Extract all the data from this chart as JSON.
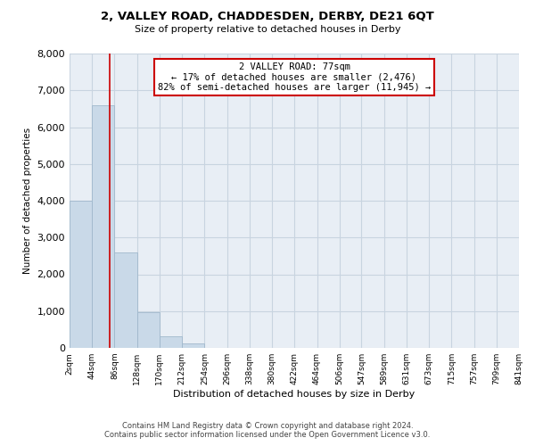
{
  "title": "2, VALLEY ROAD, CHADDESDEN, DERBY, DE21 6QT",
  "subtitle": "Size of property relative to detached houses in Derby",
  "xlabel": "Distribution of detached houses by size in Derby",
  "ylabel": "Number of detached properties",
  "bar_color": "#c9d9e8",
  "bar_edge_color": "#a0b8cc",
  "background_color": "#ffffff",
  "plot_bg_color": "#e8eef5",
  "grid_color": "#c8d4e0",
  "vline_x": 77,
  "vline_color": "#cc0000",
  "bin_edges": [
    2,
    44,
    86,
    128,
    170,
    212,
    254,
    296,
    338,
    380,
    422,
    464,
    506,
    547,
    589,
    631,
    673,
    715,
    757,
    799,
    841
  ],
  "bin_labels": [
    "2sqm",
    "44sqm",
    "86sqm",
    "128sqm",
    "170sqm",
    "212sqm",
    "254sqm",
    "296sqm",
    "338sqm",
    "380sqm",
    "422sqm",
    "464sqm",
    "506sqm",
    "547sqm",
    "589sqm",
    "631sqm",
    "673sqm",
    "715sqm",
    "757sqm",
    "799sqm",
    "841sqm"
  ],
  "bar_heights": [
    4000,
    6600,
    2600,
    960,
    320,
    120,
    0,
    0,
    0,
    0,
    0,
    0,
    0,
    0,
    0,
    0,
    0,
    0,
    0,
    0
  ],
  "ylim": [
    0,
    8000
  ],
  "yticks": [
    0,
    1000,
    2000,
    3000,
    4000,
    5000,
    6000,
    7000,
    8000
  ],
  "ann_line1": "2 VALLEY ROAD: 77sqm",
  "ann_line2": "← 17% of detached houses are smaller (2,476)",
  "ann_line3": "82% of semi-detached houses are larger (11,945) →",
  "ann_box_color": "#cc0000",
  "footer_line1": "Contains HM Land Registry data © Crown copyright and database right 2024.",
  "footer_line2": "Contains public sector information licensed under the Open Government Licence v3.0."
}
